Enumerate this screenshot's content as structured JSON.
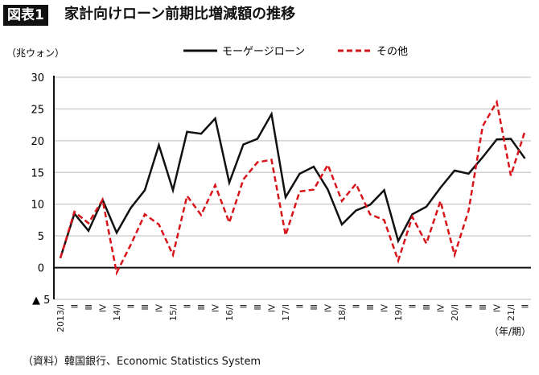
{
  "header": {
    "badge": "図表1",
    "title": "家計向けローン前期比増減額の推移"
  },
  "footer": {
    "source": "（資料）韓国銀行、Economic Statistics System"
  },
  "chart_data": {
    "type": "line",
    "title": "家計向けローン前期比増減額の推移",
    "ylabel": "（兆ウォン）",
    "xlabel": "（年/期）",
    "ylim": [
      -5,
      30
    ],
    "yticks": [
      30,
      25,
      20,
      15,
      10,
      5,
      0,
      -5
    ],
    "ytick_labels": [
      "30",
      "25",
      "20",
      "15",
      "10",
      "5",
      "0",
      "▲ 5"
    ],
    "grid": true,
    "legend_position": "top",
    "categories": [
      "2013/Ⅰ",
      "Ⅱ",
      "Ⅲ",
      "Ⅳ",
      "14/Ⅰ",
      "Ⅱ",
      "Ⅲ",
      "Ⅳ",
      "15/Ⅰ",
      "Ⅱ",
      "Ⅲ",
      "Ⅳ",
      "16/Ⅰ",
      "Ⅱ",
      "Ⅲ",
      "Ⅳ",
      "17/Ⅰ",
      "Ⅱ",
      "Ⅲ",
      "Ⅳ",
      "18/Ⅰ",
      "Ⅱ",
      "Ⅲ",
      "Ⅳ",
      "19/Ⅰ",
      "Ⅱ",
      "Ⅲ",
      "Ⅳ",
      "20/Ⅰ",
      "Ⅱ",
      "Ⅲ",
      "Ⅳ",
      "21/Ⅰ",
      "Ⅱ"
    ],
    "series": [
      {
        "name": "モーゲージローン",
        "color": "#111111",
        "style": "solid",
        "values": [
          1.5,
          8.5,
          5.8,
          10.7,
          5.5,
          9.4,
          12.2,
          19.3,
          12.2,
          21.4,
          21.1,
          23.5,
          13.4,
          19.4,
          20.3,
          24.2,
          11.1,
          14.8,
          15.9,
          12.3,
          6.8,
          9.0,
          9.9,
          12.2,
          4.2,
          8.4,
          9.6,
          12.6,
          15.3,
          14.8,
          17.4,
          20.2,
          20.3,
          17.2
        ]
      },
      {
        "name": "その他",
        "color": "#d7141a",
        "style": "dashed",
        "values": [
          1.5,
          8.8,
          7.0,
          10.7,
          -0.8,
          3.6,
          8.4,
          6.8,
          2.0,
          11.3,
          8.3,
          13.0,
          7.1,
          13.9,
          16.6,
          17.0,
          5.1,
          12.0,
          12.3,
          16.2,
          10.5,
          13.2,
          8.4,
          7.5,
          1.1,
          8.0,
          3.8,
          10.5,
          2.0,
          9.0,
          22.3,
          26.1,
          14.5,
          21.5
        ]
      }
    ]
  }
}
